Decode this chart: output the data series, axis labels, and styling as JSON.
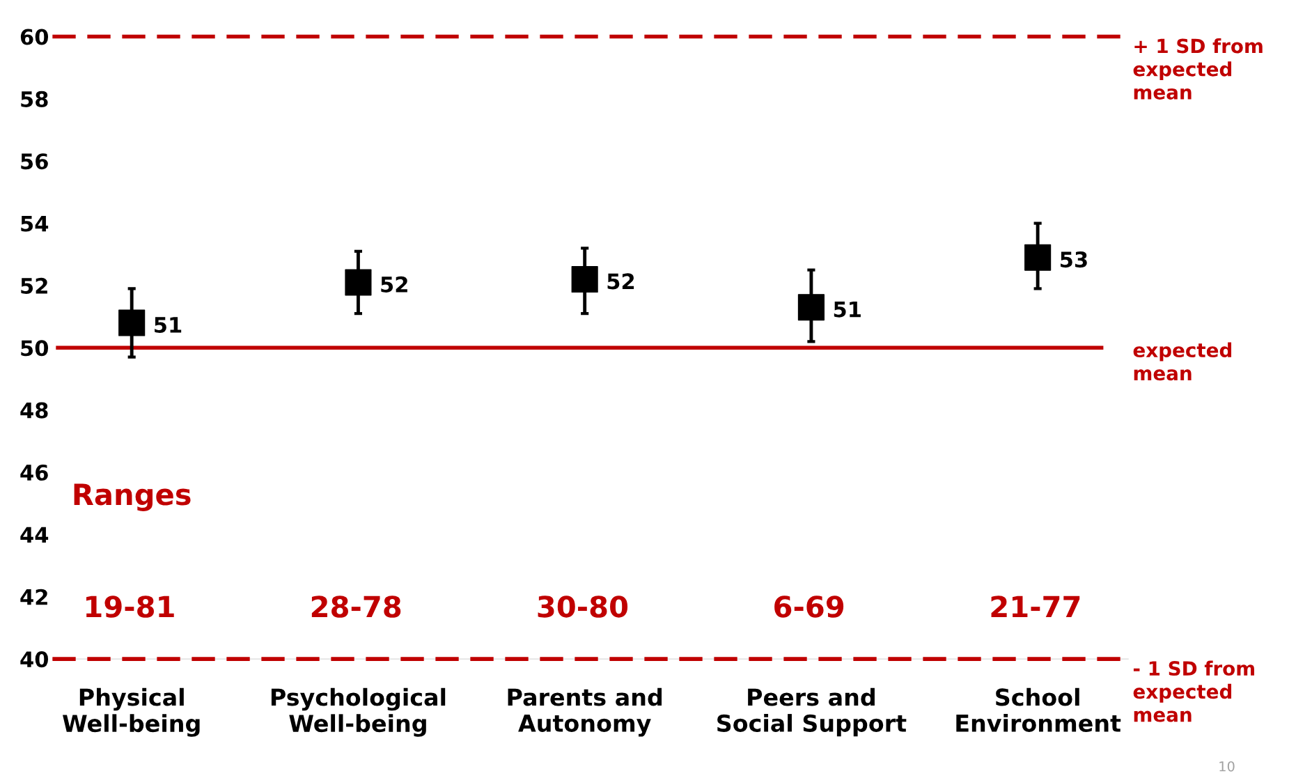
{
  "chart_data": {
    "type": "scatter",
    "categories": [
      "Physical\nWell-being",
      "Psychological\nWell-being",
      "Parents and\nAutonomy",
      "Peers and\nSocial Support",
      "School\nEnvironment"
    ],
    "values": [
      50.8,
      52.1,
      52.2,
      51.3,
      52.9
    ],
    "errors": [
      [
        49.7,
        51.9
      ],
      [
        51.1,
        53.1
      ],
      [
        51.1,
        53.2
      ],
      [
        50.2,
        52.5
      ],
      [
        51.9,
        54.0
      ]
    ],
    "value_labels": [
      "51",
      "52",
      "52",
      "51",
      "53"
    ],
    "color": "#000000",
    "marker": "square",
    "ylim": [
      40,
      60
    ],
    "yticks": [
      40,
      42,
      44,
      46,
      48,
      50,
      52,
      54,
      56,
      58,
      60
    ],
    "grid": false,
    "ref_lines": [
      {
        "axis": "y",
        "value": 60,
        "label": "+ 1 SD from\nexpected\nmean",
        "color": "#c00000",
        "line_style": "dashed"
      },
      {
        "axis": "y",
        "value": 50,
        "label": "expected\nmean",
        "color": "#c00000",
        "line_style": "solid"
      },
      {
        "axis": "y",
        "value": 40,
        "label": "- 1 SD from\nexpected\nmean",
        "color": "#c00000",
        "line_style": "dashed"
      }
    ],
    "annotations": [
      "Ranges",
      "19-81",
      "28-78",
      "30-80",
      "6-69",
      "21-77",
      "10"
    ]
  }
}
